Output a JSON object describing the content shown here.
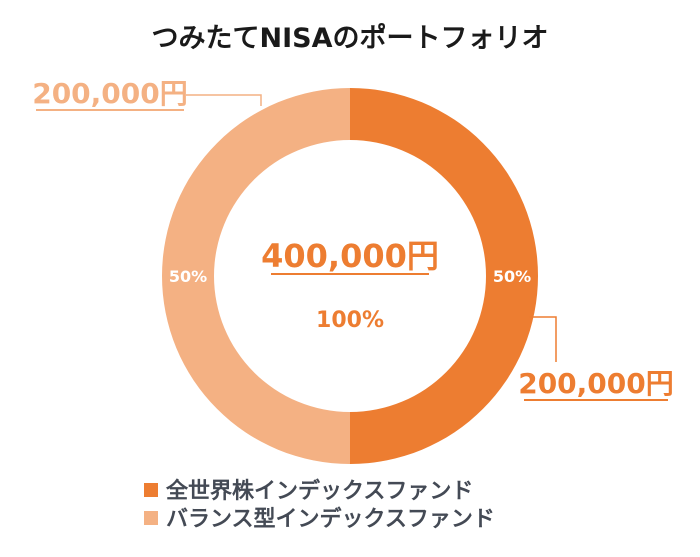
{
  "chart_data": {
    "type": "pie",
    "title": "つみたてNISAのポートフォリオ",
    "center": {
      "amount": "400,000円",
      "percent": "100%"
    },
    "slices": [
      {
        "name": "全世界株インデックスファンド",
        "value": 200000,
        "value_label": "200,000円",
        "percent_label": "50%",
        "color": "#ed7d31"
      },
      {
        "name": "バランス型インデックスファンド",
        "value": 200000,
        "value_label": "200,000円",
        "percent_label": "50%",
        "color": "#f4b183"
      }
    ],
    "legend_position": "bottom"
  }
}
